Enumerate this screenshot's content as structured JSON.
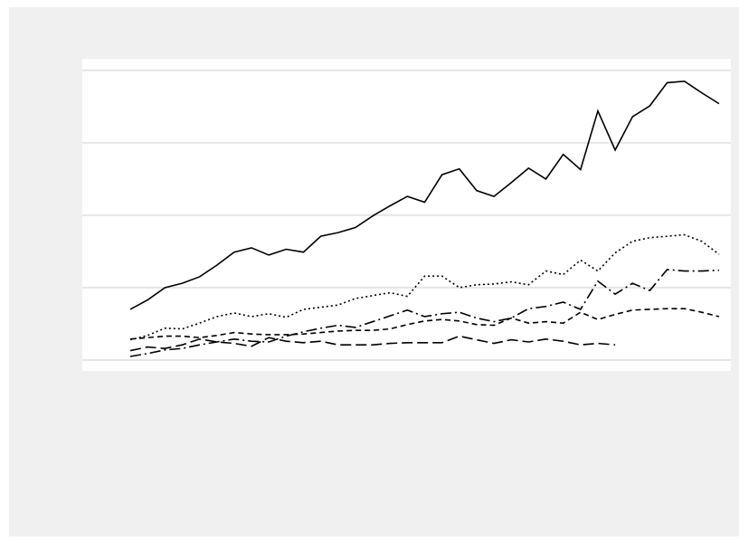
{
  "chart_data": {
    "type": "line",
    "x": [
      0,
      1,
      2,
      3,
      4,
      5,
      6,
      7,
      8,
      9,
      10,
      11,
      12,
      13,
      14,
      15,
      16,
      17,
      18,
      19,
      20,
      21,
      22,
      23,
      24,
      25,
      26,
      27,
      28,
      29,
      30,
      31,
      32,
      33,
      34
    ],
    "xlim": [
      -2.77,
      34.68
    ],
    "ylim": [
      -0.15,
      4.16
    ],
    "yticks": [
      0,
      1,
      2,
      3,
      4
    ],
    "grid": true,
    "series": [
      {
        "color": "#000000",
        "linestyle": "solid",
        "values": [
          0.7,
          0.83,
          1.0,
          1.06,
          1.15,
          1.31,
          1.49,
          1.55,
          1.45,
          1.53,
          1.49,
          1.71,
          1.76,
          1.83,
          1.99,
          2.13,
          2.26,
          2.18,
          2.56,
          2.64,
          2.34,
          2.26,
          2.45,
          2.65,
          2.5,
          2.84,
          2.63,
          3.44,
          2.9,
          3.36,
          3.51,
          3.83,
          3.85,
          3.69,
          3.54
        ]
      },
      {
        "color": "#000000",
        "linestyle": "dotted",
        "values": [
          0.28,
          0.34,
          0.44,
          0.43,
          0.51,
          0.6,
          0.65,
          0.6,
          0.64,
          0.59,
          0.7,
          0.73,
          0.76,
          0.85,
          0.89,
          0.93,
          0.88,
          1.16,
          1.16,
          1.0,
          1.04,
          1.05,
          1.08,
          1.04,
          1.23,
          1.18,
          1.38,
          1.23,
          1.48,
          1.64,
          1.69,
          1.71,
          1.73,
          1.64,
          1.46
        ]
      },
      {
        "color": "#000000",
        "linestyle": "dashdot",
        "values": [
          0.05,
          0.09,
          0.14,
          0.16,
          0.21,
          0.25,
          0.29,
          0.26,
          0.25,
          0.33,
          0.39,
          0.44,
          0.48,
          0.45,
          0.53,
          0.61,
          0.69,
          0.6,
          0.64,
          0.66,
          0.58,
          0.53,
          0.58,
          0.71,
          0.74,
          0.8,
          0.7,
          1.09,
          0.91,
          1.06,
          0.96,
          1.25,
          1.23,
          1.23,
          1.24
        ]
      },
      {
        "color": "#000000",
        "linestyle": "dashed",
        "values": [
          0.29,
          0.31,
          0.33,
          0.33,
          0.31,
          0.34,
          0.38,
          0.36,
          0.35,
          0.35,
          0.36,
          0.38,
          0.4,
          0.41,
          0.41,
          0.43,
          0.49,
          0.54,
          0.56,
          0.54,
          0.49,
          0.48,
          0.58,
          0.51,
          0.53,
          0.51,
          0.66,
          0.56,
          0.63,
          0.69,
          0.7,
          0.71,
          0.71,
          0.66,
          0.6
        ]
      },
      {
        "color": "#000000",
        "linestyle": "longdash",
        "values": [
          0.13,
          0.18,
          0.16,
          0.21,
          0.29,
          0.25,
          0.23,
          0.19,
          0.31,
          0.26,
          0.24,
          0.26,
          0.21,
          0.21,
          0.21,
          0.23,
          0.24,
          0.24,
          0.24,
          0.33,
          0.28,
          0.23,
          0.28,
          0.25,
          0.29,
          0.26,
          0.21,
          0.23,
          0.21,
          null,
          null,
          null,
          null,
          null,
          null
        ]
      }
    ]
  }
}
